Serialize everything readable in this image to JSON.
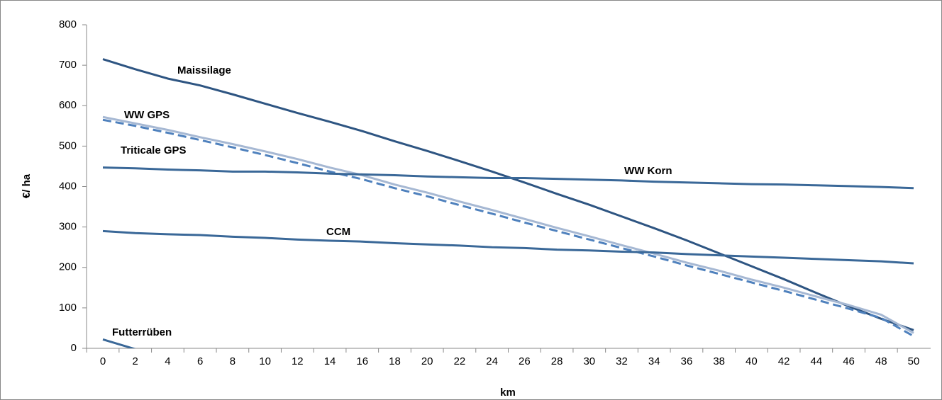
{
  "chart_data": {
    "type": "line",
    "x": [
      0,
      2,
      4,
      6,
      8,
      10,
      12,
      14,
      16,
      18,
      20,
      22,
      24,
      26,
      28,
      30,
      32,
      34,
      36,
      38,
      40,
      42,
      44,
      46,
      48,
      50
    ],
    "xlim": [
      0,
      50
    ],
    "xticks": [
      0,
      2,
      4,
      6,
      8,
      10,
      12,
      14,
      16,
      18,
      20,
      22,
      24,
      26,
      28,
      30,
      32,
      34,
      36,
      38,
      40,
      42,
      44,
      46,
      48,
      50
    ],
    "ylim": [
      0,
      800
    ],
    "yticks": [
      0,
      100,
      200,
      300,
      400,
      500,
      600,
      700,
      800
    ],
    "x_label": "km",
    "y_label": "€/ ha",
    "series": [
      {
        "name": "Maissilage",
        "color": "#2e5582",
        "dashed": false,
        "values": [
          715,
          690,
          667,
          650,
          628,
          605,
          582,
          560,
          537,
          512,
          488,
          463,
          437,
          410,
          382,
          355,
          326,
          297,
          267,
          235,
          203,
          171,
          137,
          104,
          73,
          45
        ]
      },
      {
        "name": "WW GPS",
        "color": "#a6b8d3",
        "dashed": false,
        "values": [
          572,
          556,
          540,
          522,
          505,
          487,
          468,
          447,
          428,
          405,
          385,
          363,
          342,
          320,
          298,
          277,
          255,
          234,
          212,
          192,
          170,
          150,
          128,
          107,
          83,
          38
        ]
      },
      {
        "name": "Triticale GPS",
        "color": "#4f81bd",
        "dashed": true,
        "values": [
          565,
          550,
          533,
          515,
          497,
          478,
          458,
          437,
          418,
          396,
          376,
          354,
          333,
          311,
          290,
          269,
          248,
          227,
          205,
          184,
          163,
          142,
          120,
          98,
          75,
          30
        ]
      },
      {
        "name": "WW Korn",
        "color": "#3a6898",
        "dashed": false,
        "values": [
          447,
          445,
          442,
          440,
          437,
          437,
          435,
          432,
          430,
          428,
          425,
          423,
          421,
          421,
          419,
          417,
          415,
          412,
          410,
          408,
          406,
          405,
          403,
          401,
          399,
          396
        ]
      },
      {
        "name": "CCM",
        "color": "#3a6898",
        "dashed": false,
        "values": [
          290,
          285,
          282,
          280,
          276,
          273,
          269,
          266,
          264,
          260,
          257,
          254,
          250,
          248,
          244,
          242,
          239,
          237,
          233,
          230,
          227,
          224,
          221,
          218,
          215,
          210
        ]
      },
      {
        "name": "Futterrüben",
        "color": "#3a6898",
        "dashed": false,
        "values": [
          22,
          -2,
          null,
          null,
          null,
          null,
          null,
          null,
          null,
          null,
          null,
          null,
          null,
          null,
          null,
          null,
          null,
          null,
          null,
          null,
          null,
          null,
          null,
          null,
          null,
          null
        ]
      }
    ]
  }
}
